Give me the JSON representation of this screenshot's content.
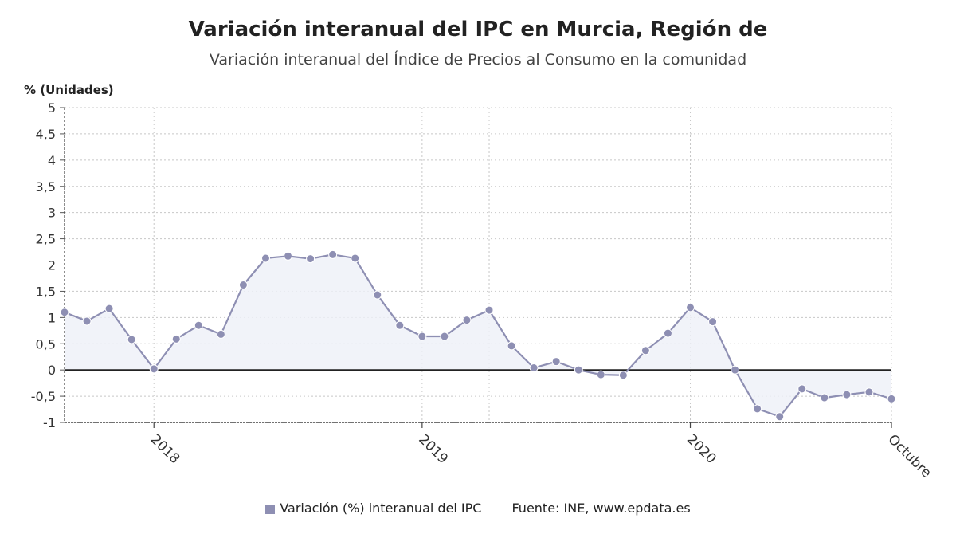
{
  "chart_data": {
    "type": "line",
    "title": "Variación interanual del IPC en Murcia, Región de",
    "subtitle": "Variación interanual del Índice de Precios al Consumo en la comunidad",
    "ylabel": "% (Unidades)",
    "ylim": [
      -1,
      5
    ],
    "yticks": [
      -1,
      -0.5,
      0,
      0.5,
      1,
      1.5,
      2,
      2.5,
      3,
      3.5,
      4,
      4.5,
      5
    ],
    "ytick_labels": [
      "-1",
      "-0,5",
      "0",
      "0,5",
      "1",
      "1,5",
      "2",
      "2,5",
      "3",
      "3,5",
      "4",
      "4,5",
      "5"
    ],
    "xtick_labels": [
      {
        "index": 4,
        "label": "2018"
      },
      {
        "index": 16,
        "label": "2019"
      },
      {
        "index": 28,
        "label": "2020"
      },
      {
        "index": 37,
        "label": "Octubre"
      }
    ],
    "series": [
      {
        "name": "Variación (%) interanual del IPC",
        "color": "#8e8fb3",
        "values": [
          1.1,
          0.93,
          1.17,
          0.58,
          0.02,
          0.59,
          0.85,
          0.68,
          1.62,
          2.13,
          2.17,
          2.12,
          2.2,
          2.13,
          1.43,
          0.85,
          0.64,
          0.64,
          0.95,
          1.14,
          0.46,
          0.04,
          0.16,
          0.0,
          -0.09,
          -0.1,
          0.37,
          0.7,
          1.19,
          0.92,
          0.0,
          -0.74,
          -0.89,
          -0.36,
          -0.53,
          -0.47,
          -0.42,
          -0.55
        ]
      }
    ],
    "legend": "Variación (%) interanual del IPC",
    "source": "Fuente: INE, www.epdata.es"
  }
}
